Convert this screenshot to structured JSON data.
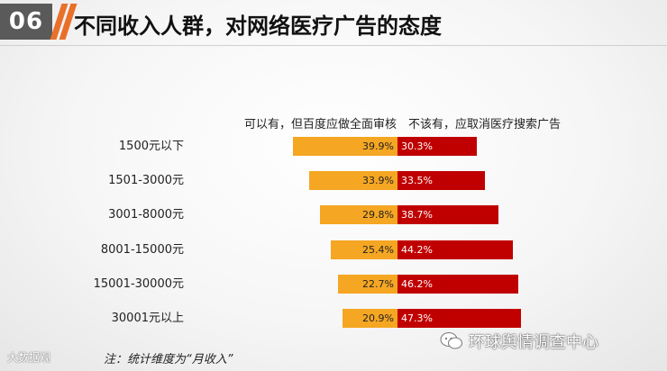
{
  "header": {
    "badge": "06",
    "title": "不同收入人群，对网络医疗广告的态度"
  },
  "chart_data": {
    "type": "bar",
    "categories": [
      "1500元以下",
      "1501-3000元",
      "3001-8000元",
      "8001-15000元",
      "15001-30000元",
      "30001元以上"
    ],
    "series": [
      {
        "name": "可以有，但百度应做全面审核",
        "values": [
          39.9,
          33.9,
          29.8,
          25.4,
          22.7,
          20.9
        ],
        "labels": [
          "39.9%",
          "33.9%",
          "29.8%",
          "25.4%",
          "22.7%",
          "20.9%"
        ],
        "color": "#f5a623"
      },
      {
        "name": "不该有，应取消医疗搜索广告",
        "values": [
          30.3,
          33.5,
          38.7,
          44.2,
          46.2,
          47.3
        ],
        "labels": [
          "30.3%",
          "33.5%",
          "38.7%",
          "44.2%",
          "46.2%",
          "47.3%"
        ],
        "color": "#c00000"
      }
    ]
  },
  "footer": {
    "note": "注：统计维度为“月收入”",
    "logo": "大数据观",
    "watermark": "环球舆情调查中心"
  },
  "icons": {
    "watermark_icon": "wechat-icon"
  }
}
